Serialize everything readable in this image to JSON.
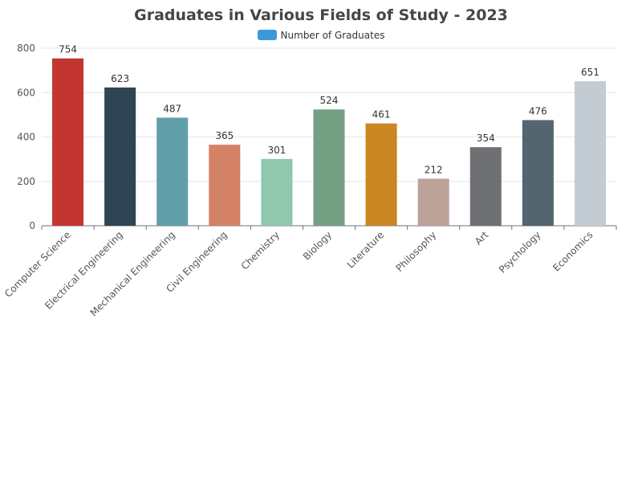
{
  "chart_data": {
    "type": "bar",
    "title": "Graduates in Various Fields of Study - 2023",
    "categories": [
      "Computer Science",
      "Electrical Engineering",
      "Mechanical Engineering",
      "Civil Engineering",
      "Chemistry",
      "Biology",
      "Literature",
      "Philosophy",
      "Art",
      "Psychology",
      "Economics"
    ],
    "series": [
      {
        "name": "Number of Graduates",
        "values": [
          754,
          623,
          487,
          365,
          301,
          524,
          461,
          212,
          354,
          476,
          651
        ]
      }
    ],
    "bar_colors": [
      "#c23531",
      "#2f4554",
      "#61a0a8",
      "#d48265",
      "#91c7ae",
      "#749f83",
      "#ca8622",
      "#bda29a",
      "#6e7074",
      "#546570",
      "#c4ccd3"
    ],
    "legend_color": "#3a98db",
    "ylim": [
      0,
      800
    ],
    "yticks": [
      0,
      200,
      400,
      600,
      800
    ],
    "xlabel": "",
    "ylabel": "",
    "grid": true,
    "legend_position": "top-center",
    "data_labels": true
  }
}
